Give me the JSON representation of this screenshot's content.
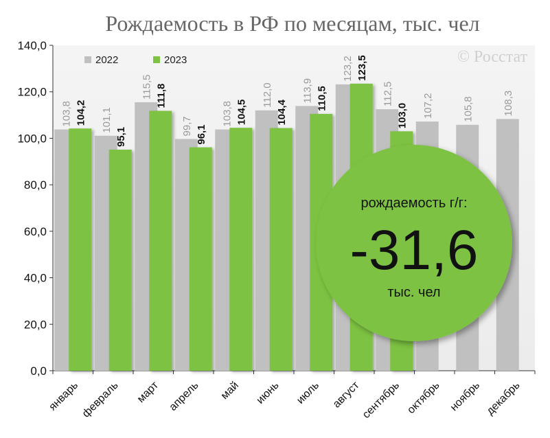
{
  "chart_data": {
    "type": "bar",
    "title": "Рождаемость в РФ по месяцам, тыс. чел",
    "watermark": "© Росстат",
    "categories": [
      "январь",
      "февраль",
      "март",
      "апрель",
      "май",
      "июнь",
      "июль",
      "август",
      "сентябрь",
      "октябрь",
      "ноябрь",
      "декабрь"
    ],
    "series": [
      {
        "name": "2022",
        "color": "#c0c0c0",
        "values": [
          103.8,
          101.1,
          115.5,
          99.7,
          103.8,
          112.0,
          113.9,
          123.2,
          112.5,
          107.2,
          105.8,
          108.3
        ],
        "labels": [
          "103,8",
          "101,1",
          "115,5",
          "99,7",
          "103,8",
          "112,0",
          "113,9",
          "123,2",
          "112,5",
          "107,2",
          "105,8",
          "108,3"
        ]
      },
      {
        "name": "2023",
        "color": "#7dc242",
        "values": [
          104.2,
          95.1,
          111.8,
          96.1,
          104.5,
          104.4,
          110.5,
          123.5,
          103.0,
          null,
          null,
          null
        ],
        "labels": [
          "104,2",
          "95,1",
          "111,8",
          "96,1",
          "104,5",
          "104,4",
          "110,5",
          "123,5",
          "103,0",
          "",
          "",
          ""
        ]
      }
    ],
    "y_ticks": [
      "0,0",
      "20,0",
      "40,0",
      "60,0",
      "80,0",
      "100,0",
      "120,0",
      "140,0"
    ],
    "ylim": [
      0,
      140
    ],
    "grid": false,
    "legend_position": "top-left",
    "callout": {
      "line1": "рождаемость г/г:",
      "value": "-31,6",
      "line2": "тыс. чел",
      "color": "#7dc242"
    }
  }
}
